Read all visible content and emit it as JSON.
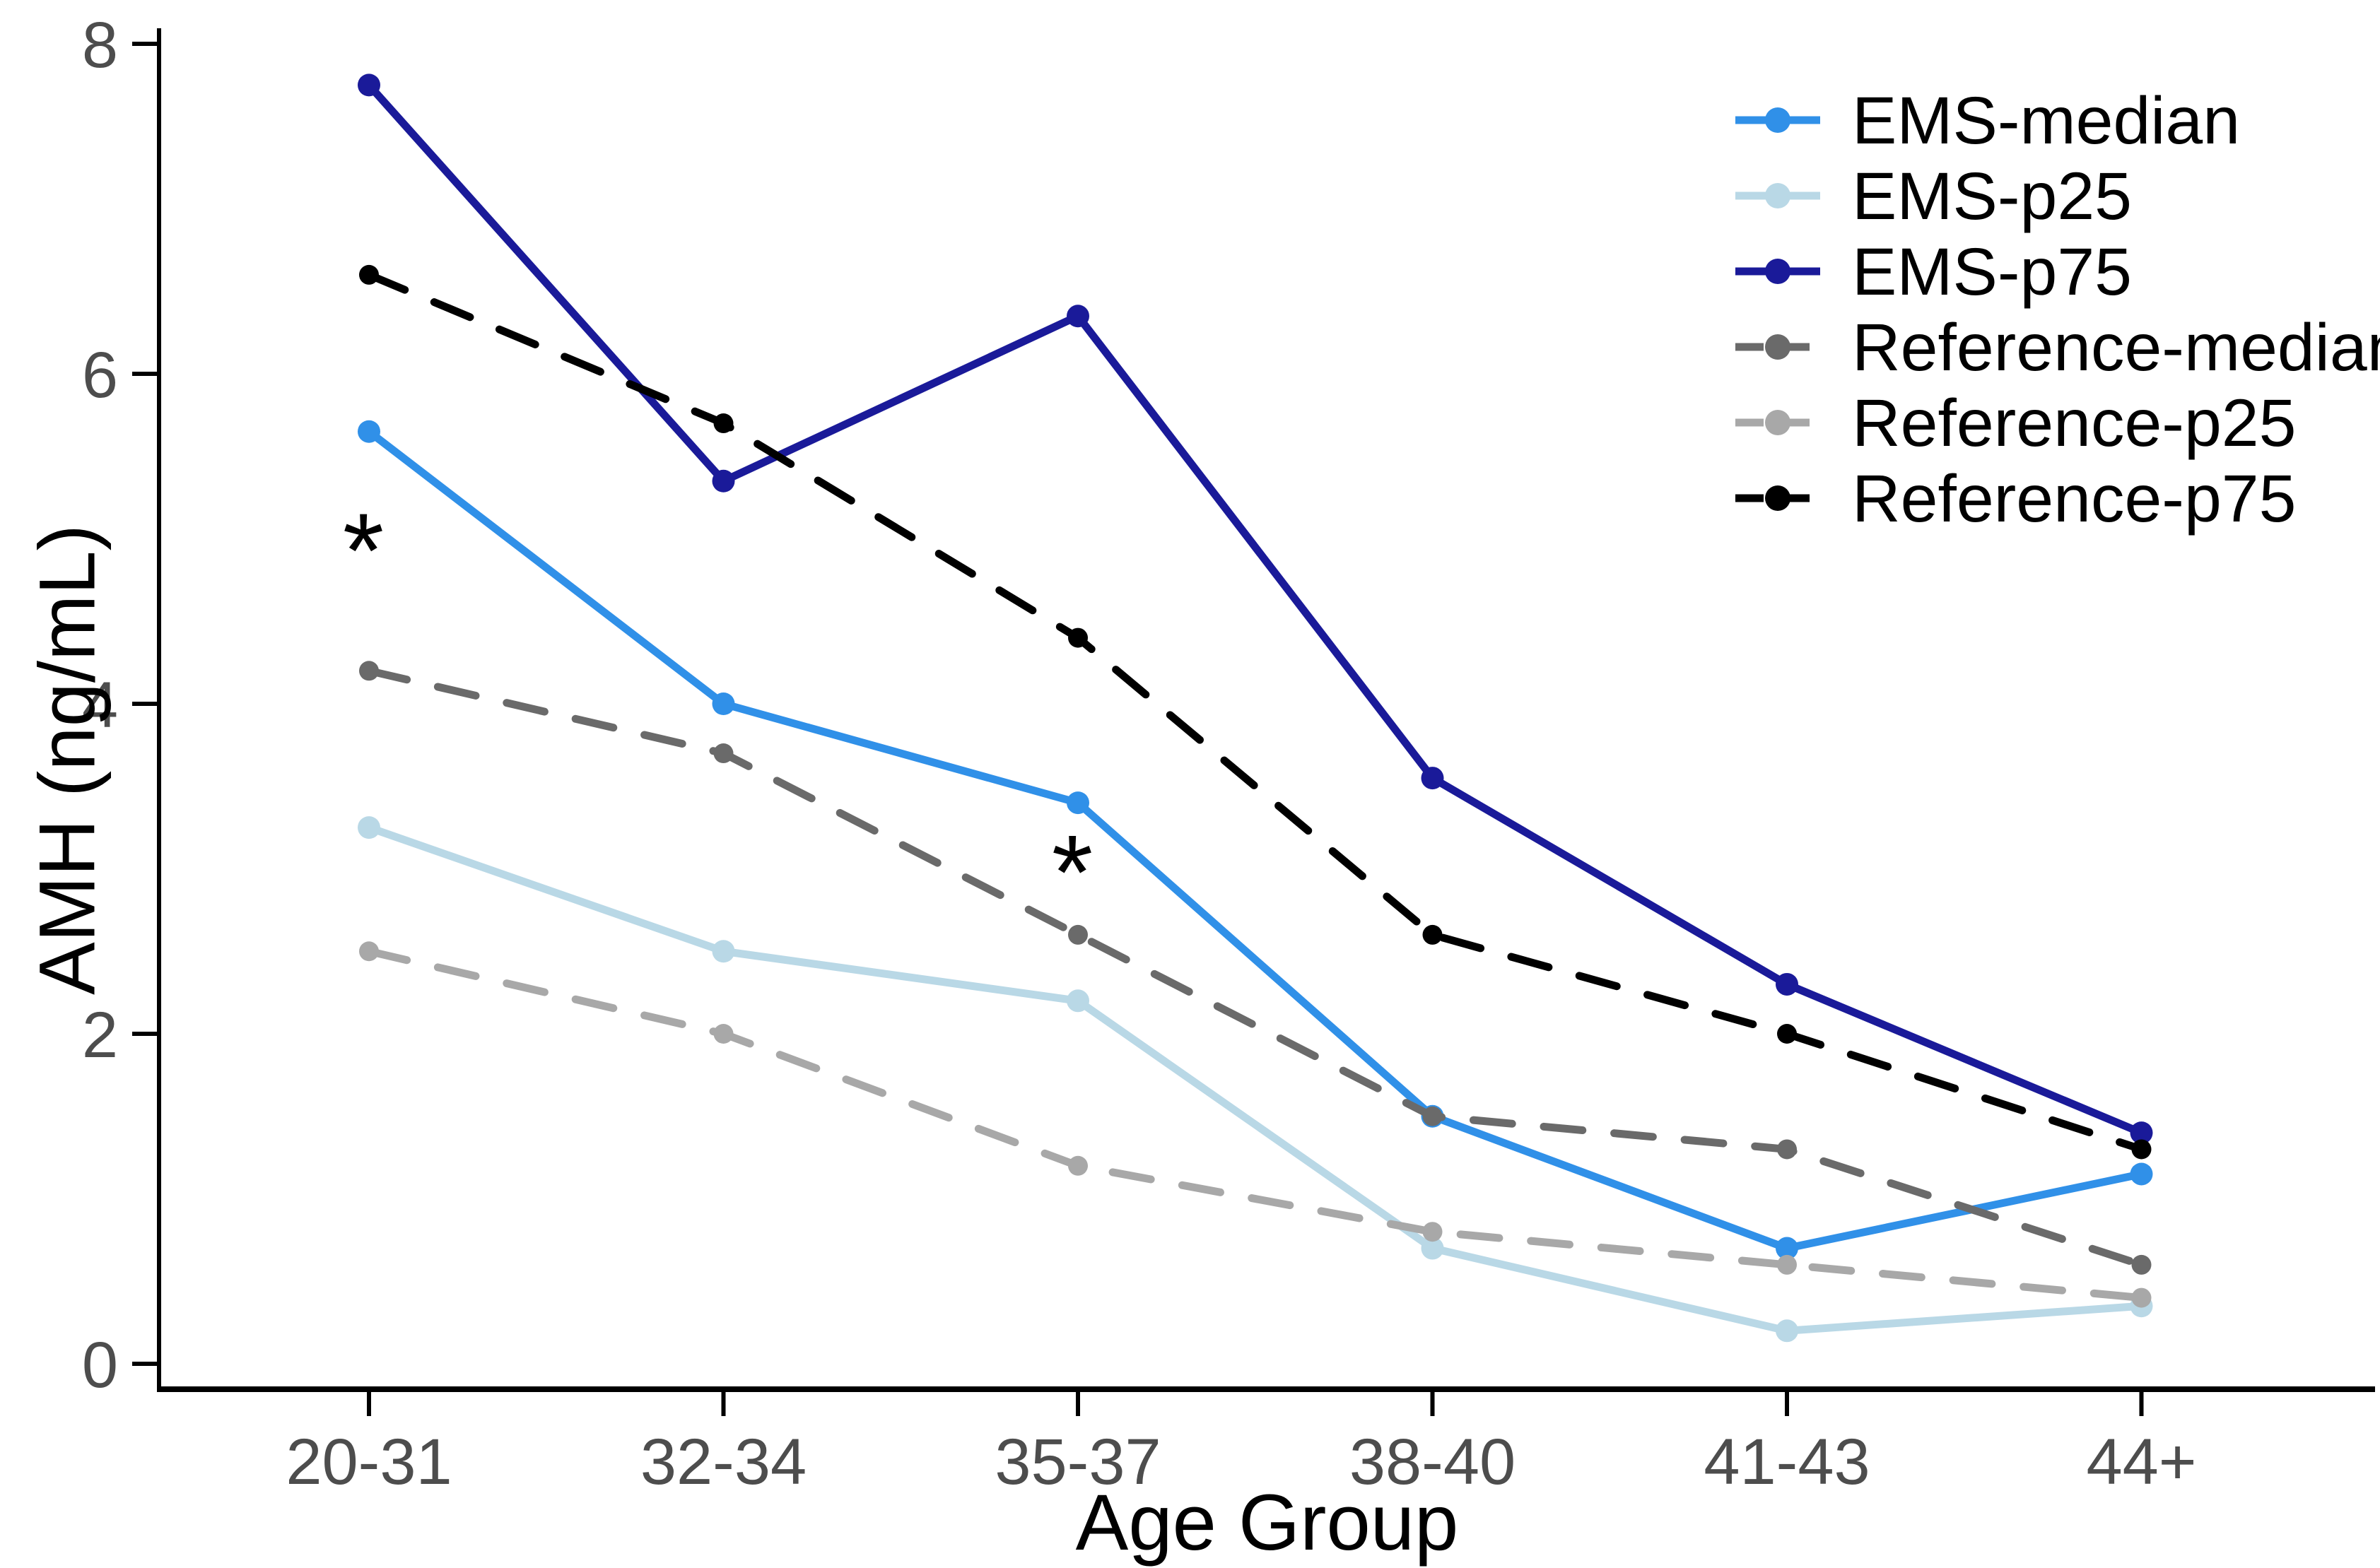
{
  "chart_data": {
    "type": "line",
    "title": "",
    "xlabel": "Age Group",
    "ylabel": "AMH (ng/mL)",
    "ylim": [
      0,
      8
    ],
    "yticks": [
      0,
      2,
      4,
      6,
      8
    ],
    "grid": false,
    "legend_position": "top-right",
    "axis_color": "#000000",
    "tick_label_color": "#4d4d4d",
    "categories": [
      "20-31",
      "32-34",
      "35-37",
      "38-40",
      "41-43",
      "44+"
    ],
    "series": [
      {
        "name": "EMS-median",
        "color": "#3090e8",
        "style": "solid",
        "values": [
          5.65,
          4.0,
          3.4,
          1.5,
          0.7,
          1.15
        ]
      },
      {
        "name": "EMS-p25",
        "color": "#b9d8e6",
        "style": "solid",
        "values": [
          3.25,
          2.5,
          2.2,
          0.7,
          0.2,
          0.35
        ]
      },
      {
        "name": "EMS-p75",
        "color": "#1a1a99",
        "style": "solid",
        "values": [
          7.75,
          5.35,
          6.35,
          3.55,
          2.3,
          1.4
        ]
      },
      {
        "name": "Reference-median",
        "color": "#6a6a6a",
        "style": "dashed",
        "values": [
          4.2,
          3.7,
          2.6,
          1.5,
          1.3,
          0.6
        ]
      },
      {
        "name": "Reference-p25",
        "color": "#a8a8a8",
        "style": "dashed",
        "values": [
          2.5,
          2.0,
          1.2,
          0.8,
          0.6,
          0.4
        ]
      },
      {
        "name": "Reference-p75",
        "color": "#000000",
        "style": "dashed",
        "values": [
          6.6,
          5.7,
          4.4,
          2.6,
          2.0,
          1.3
        ]
      }
    ],
    "annotations": [
      {
        "symbol": "*",
        "category": "20-31",
        "y": 5.05
      },
      {
        "symbol": "*",
        "category": "35-37",
        "y": 3.1
      }
    ]
  }
}
